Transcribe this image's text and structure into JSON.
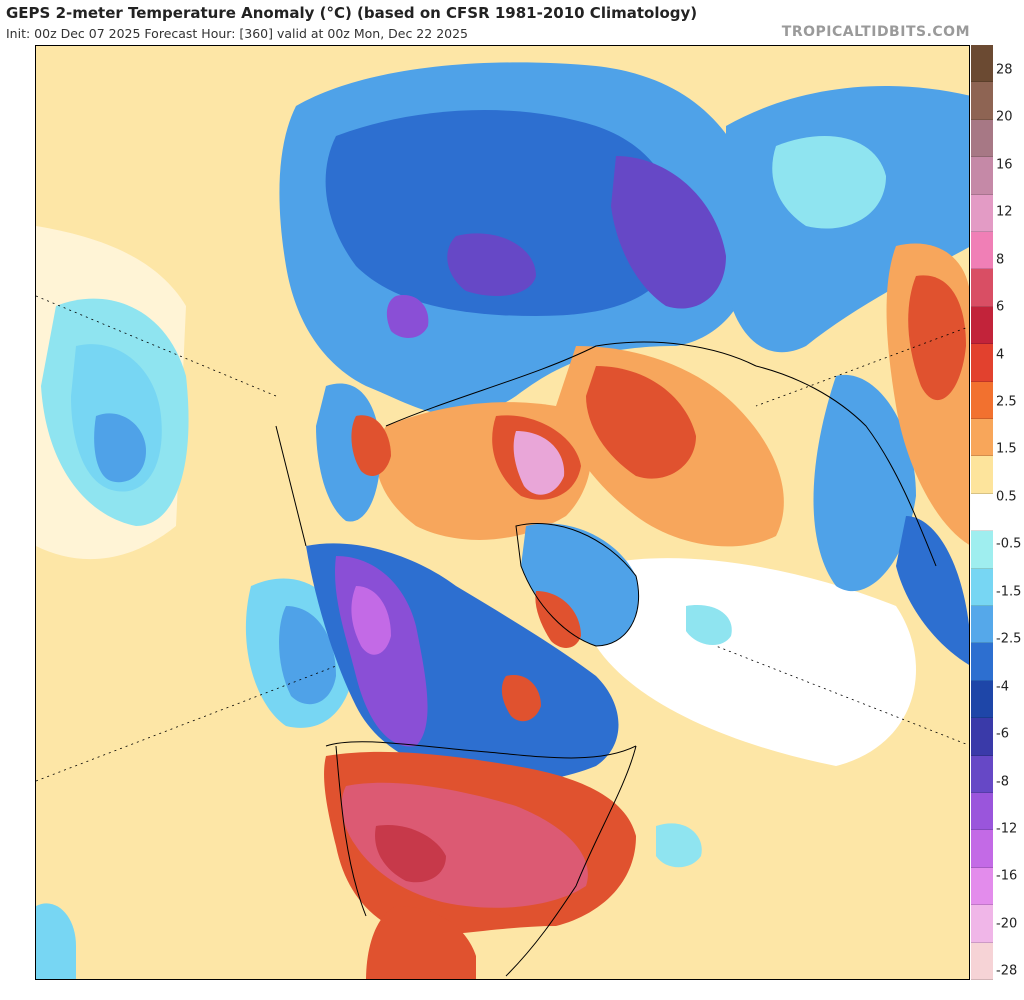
{
  "header": {
    "title": "GEPS 2-meter Temperature Anomaly (°C) (based on CFSR 1981-2010 Climatology)",
    "subtitle": "Init: 00z Dec 07 2025   Forecast Hour: [360]   valid at 00z Mon, Dec 22 2025",
    "brand": "TROPICALTIDBITS.COM"
  },
  "legend": {
    "labels": [
      "28",
      "20",
      "16",
      "12",
      "8",
      "6",
      "4",
      "2.5",
      "1.5",
      "0.5",
      "-0.5",
      "-1.5",
      "-2.5",
      "-4",
      "-6",
      "-8",
      "-12",
      "-16",
      "-20",
      "-28"
    ],
    "colors": [
      "#6b4a32",
      "#8e6453",
      "#a77885",
      "#c589a7",
      "#e39bc5",
      "#f07fb6",
      "#d94e64",
      "#c2233a",
      "#e2412e",
      "#f2712f",
      "#f8a65a",
      "#fde49c",
      "#ffffff",
      "#9feeef",
      "#77d6f3",
      "#55a8ea",
      "#2d6fd0",
      "#1e46a8",
      "#3a3aa9",
      "#6648c6",
      "#9a55dc",
      "#c36ae6",
      "#e38cec",
      "#f0b6e8",
      "#f6d3d6"
    ]
  },
  "colors": {
    "warm_light": "#fde6a6",
    "warm": "#f7a65c",
    "warm_strong": "#e0522f",
    "hot": "#c7394a",
    "hot_pink": "#dc5a73",
    "cold_light": "#8fe4f0",
    "cold": "#4fa2e8",
    "cold_strong": "#2d6fd0",
    "purple": "#8a4fd6",
    "lavender": "#e9a6d8"
  }
}
